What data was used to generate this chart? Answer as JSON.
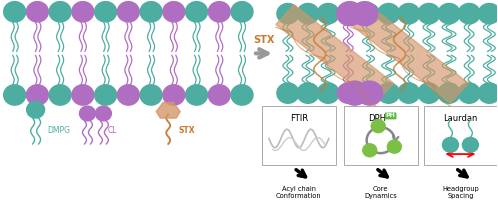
{
  "bg_color": "#ffffff",
  "teal_color": "#4DADA0",
  "purple_color": "#B06EC3",
  "orange_color": "#C87A30",
  "orange_ribbon": "#D4966A",
  "green_color": "#7BC043",
  "gray_arrow_color": "#999999",
  "orange_stx_label": "#C87A30",
  "label_dmpg": "DMPG",
  "label_cl": "CL",
  "label_stx": "STX",
  "label_stx_arrow": "STX",
  "label_ftir": "FTIR",
  "label_dph": "DPH",
  "label_ph": "PH",
  "label_laurdan": "Laurdan",
  "label_acyl": "Acyl chain\nConformation",
  "label_core": "Core\nDynamics",
  "label_head": "Headgroup\nSpacing"
}
